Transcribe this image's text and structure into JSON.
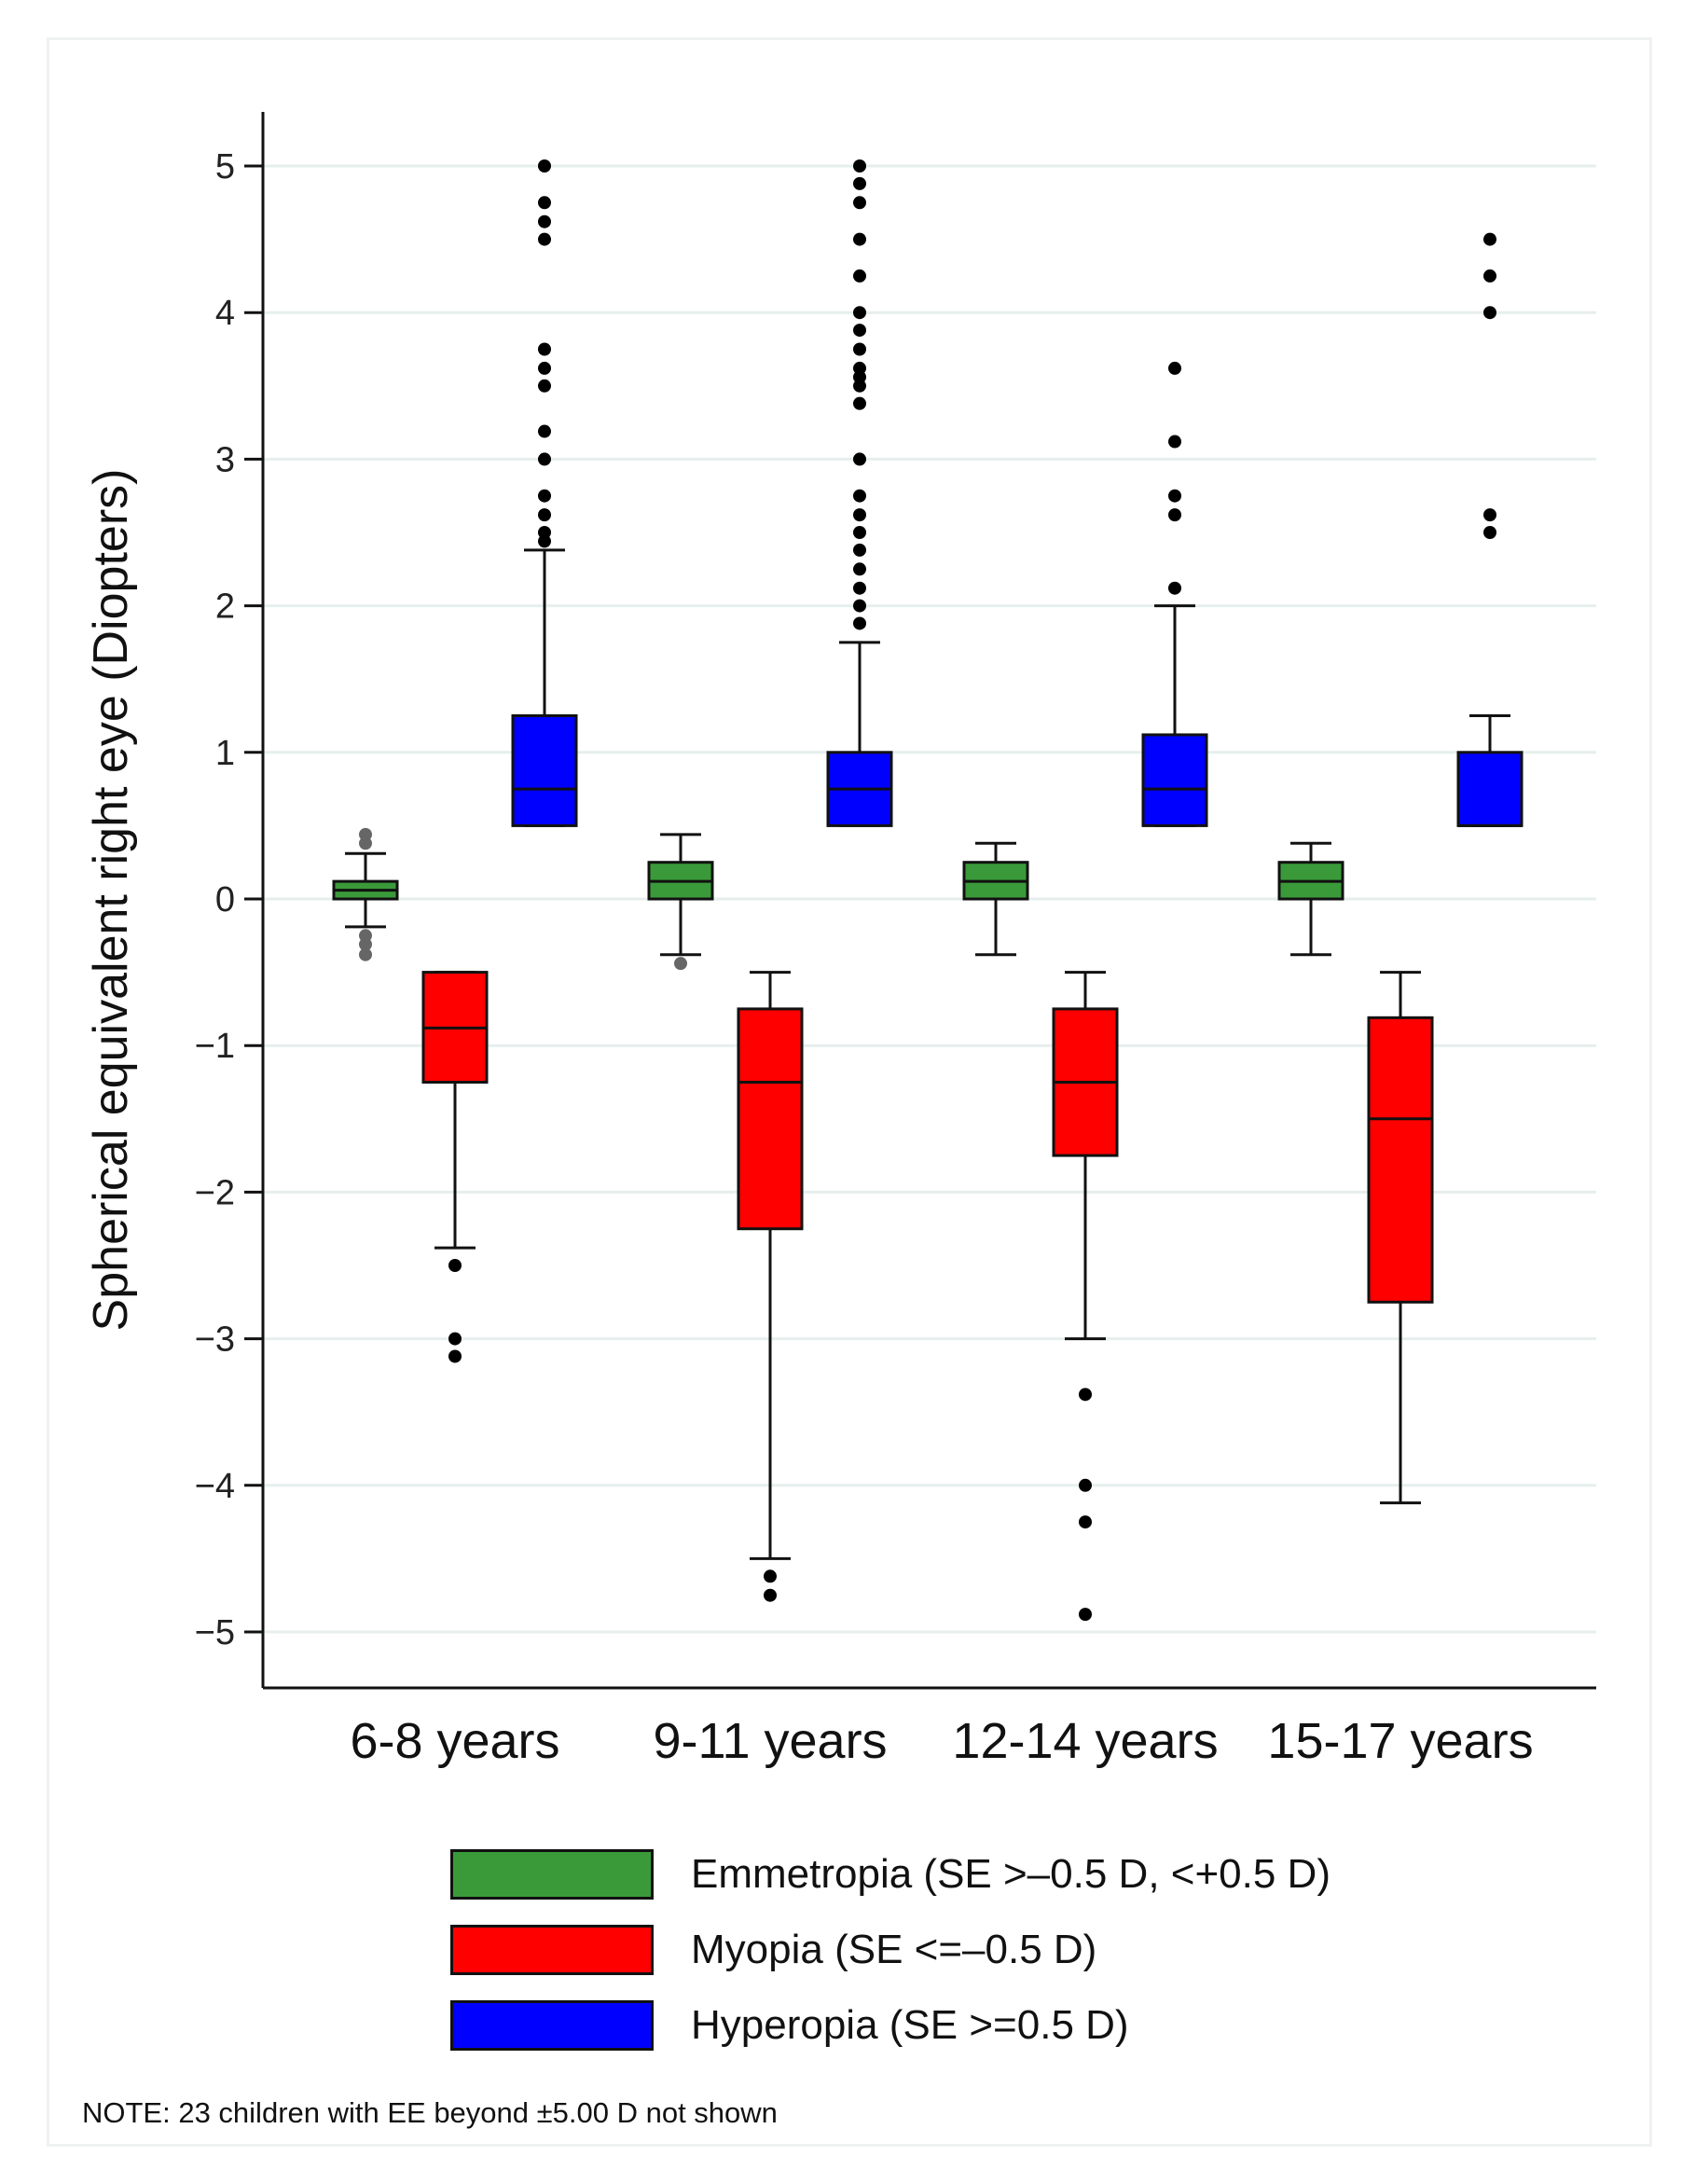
{
  "chart_data": {
    "type": "boxplot",
    "title": "",
    "xlabel": "",
    "ylabel": "Spherical equivalent right eye (Diopters)",
    "ylim": [
      -5.4,
      5.4
    ],
    "yticks": [
      5,
      4,
      3,
      2,
      1,
      0,
      -1,
      -2,
      -3,
      -4,
      -5
    ],
    "ytick_labels": [
      "5",
      "4",
      "3",
      "2",
      "1",
      "0",
      "−1",
      "−2",
      "−3",
      "−4",
      "−5"
    ],
    "grid": true,
    "categories": [
      "6-8 years",
      "9-11 years",
      "12-14 years",
      "15-17 years"
    ],
    "series": [
      {
        "name": "Emmetropia (SE >–0.5 D, <+0.5 D)",
        "color": "#3a9a3a",
        "boxes": [
          {
            "whisker_low": -0.19,
            "q1": 0.0,
            "median": 0.06,
            "q3": 0.12,
            "whisker_high": 0.31,
            "outliers": [
              0.44,
              0.38,
              -0.25,
              -0.31,
              -0.38
            ]
          },
          {
            "whisker_low": -0.38,
            "q1": 0.0,
            "median": 0.12,
            "q3": 0.25,
            "whisker_high": 0.44,
            "outliers": [
              -0.44
            ]
          },
          {
            "whisker_low": -0.38,
            "q1": 0.0,
            "median": 0.12,
            "q3": 0.25,
            "whisker_high": 0.38,
            "outliers": []
          },
          {
            "whisker_low": -0.38,
            "q1": 0.0,
            "median": 0.12,
            "q3": 0.25,
            "whisker_high": 0.38,
            "outliers": []
          }
        ]
      },
      {
        "name": "Myopia (SE <=–0.5 D)",
        "color": "#ff0000",
        "boxes": [
          {
            "whisker_low": -2.38,
            "q1": -1.25,
            "median": -0.88,
            "q3": -0.5,
            "whisker_high": -0.5,
            "outliers": [
              -2.5,
              -3.0,
              -3.12
            ]
          },
          {
            "whisker_low": -4.5,
            "q1": -2.25,
            "median": -1.25,
            "q3": -0.75,
            "whisker_high": -0.5,
            "outliers": [
              -4.62,
              -4.75
            ]
          },
          {
            "whisker_low": -3.0,
            "q1": -1.75,
            "median": -1.25,
            "q3": -0.75,
            "whisker_high": -0.5,
            "outliers": [
              -3.38,
              -4.0,
              -4.25,
              -4.88
            ]
          },
          {
            "whisker_low": -4.12,
            "q1": -2.75,
            "median": -1.5,
            "q3": -0.81,
            "whisker_high": -0.5,
            "outliers": []
          }
        ]
      },
      {
        "name": "Hyperopia (SE >=0.5 D)",
        "color": "#0000ff",
        "boxes": [
          {
            "whisker_low": 0.5,
            "q1": 0.5,
            "median": 0.75,
            "q3": 1.25,
            "whisker_high": 2.38,
            "outliers": [
              5.0,
              4.75,
              4.62,
              4.5,
              3.75,
              3.62,
              3.5,
              3.19,
              3.0,
              2.75,
              2.62,
              2.5,
              2.44
            ]
          },
          {
            "whisker_low": 0.5,
            "q1": 0.5,
            "median": 0.75,
            "q3": 1.0,
            "whisker_high": 1.75,
            "outliers": [
              5.0,
              4.88,
              4.75,
              4.5,
              4.25,
              4.0,
              3.88,
              3.75,
              3.62,
              3.56,
              3.5,
              3.38,
              3.0,
              2.75,
              2.62,
              2.5,
              2.38,
              2.25,
              2.12,
              2.0,
              1.88
            ]
          },
          {
            "whisker_low": 0.5,
            "q1": 0.5,
            "median": 0.75,
            "q3": 1.12,
            "whisker_high": 2.0,
            "outliers": [
              3.62,
              3.12,
              2.75,
              2.62,
              2.12
            ]
          },
          {
            "whisker_low": 0.5,
            "q1": 0.5,
            "median": 0.5,
            "q3": 1.0,
            "whisker_high": 1.25,
            "outliers": [
              4.5,
              4.25,
              4.0,
              2.62,
              2.5
            ]
          }
        ]
      }
    ],
    "legend_position": "bottom"
  },
  "note": "NOTE: 23 children with EE beyond ±5.00 D not shown"
}
